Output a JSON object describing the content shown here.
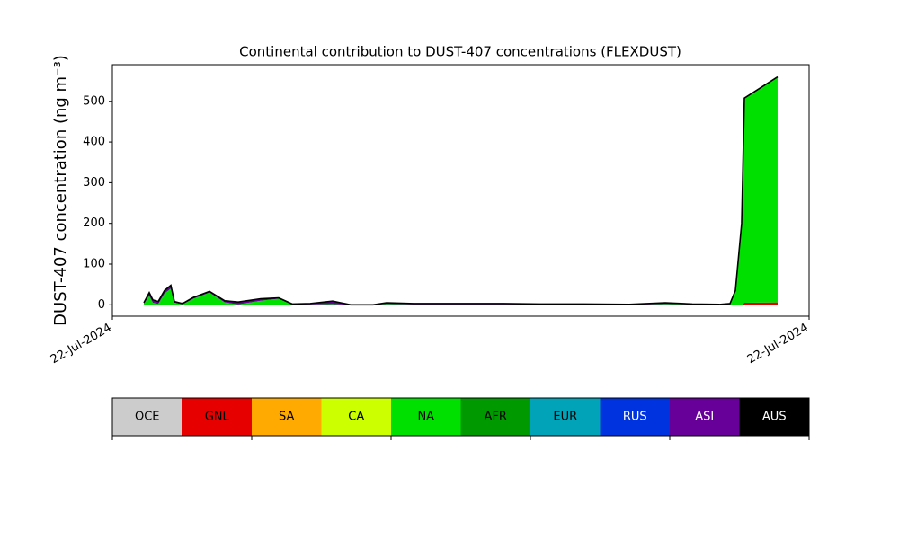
{
  "chart_data": {
    "type": "stacked_area",
    "title": "Continental contribution to DUST-407 concentrations (FLEXDUST)",
    "y_label": "DUST-407 concentration (ng m⁻³)",
    "x": [
      4.52,
      5.29,
      5.81,
      6.58,
      7.48,
      8.39,
      8.9,
      10.06,
      11.61,
      13.94,
      16.13,
      18.06,
      21.29,
      23.87,
      25.81,
      28.39,
      31.61,
      34.19,
      37.42,
      39.35,
      43.23,
      50.97,
      56.13,
      61.29,
      67.74,
      74.19,
      79.35,
      83.23,
      87.1,
      88.65,
      89.42,
      90.32,
      90.71,
      95.48
    ],
    "xlim": [
      0,
      100
    ],
    "xticks": [
      {
        "value": 0,
        "label": "22-Jul-2024"
      },
      {
        "value": 100,
        "label": "22-Jul-2024"
      }
    ],
    "ylim": [
      -28,
      590
    ],
    "yticks": [
      0,
      100,
      200,
      300,
      400,
      500
    ],
    "series": [
      {
        "name": "OCE",
        "color": "#cccccc",
        "values": [
          0,
          0,
          0,
          0,
          0,
          0,
          0,
          0,
          0,
          0,
          0,
          0,
          0,
          0,
          0,
          0,
          0,
          0,
          0,
          0,
          0,
          0,
          0,
          0,
          0,
          0,
          0,
          0,
          0,
          0,
          0,
          0,
          0,
          0
        ]
      },
      {
        "name": "GNL",
        "color": "#e60000",
        "values": [
          0,
          0,
          0,
          0,
          0,
          0,
          0,
          0,
          0,
          0,
          0,
          0,
          0,
          0,
          0,
          0,
          0,
          0,
          0,
          0,
          0,
          0,
          0,
          0,
          0,
          0,
          0,
          0,
          0,
          0,
          0,
          0,
          5,
          6
        ]
      },
      {
        "name": "SA",
        "color": "#ffaa00",
        "values": [
          0,
          0,
          0,
          0,
          0,
          0,
          0,
          0,
          0,
          0,
          0,
          0,
          0,
          0,
          0,
          0,
          0,
          0,
          0,
          0,
          0,
          0,
          0,
          0,
          0,
          0,
          0,
          0,
          0,
          0,
          0,
          0,
          0,
          0
        ]
      },
      {
        "name": "CA",
        "color": "#ccff00",
        "values": [
          0,
          0,
          0,
          0,
          0,
          0,
          0,
          0,
          0,
          0,
          0,
          0,
          0,
          0,
          0,
          0,
          0,
          0,
          0,
          0,
          0,
          0,
          0,
          0,
          0,
          0,
          0,
          0,
          0,
          0,
          0,
          0,
          0,
          0
        ]
      },
      {
        "name": "NA",
        "color": "#00e000",
        "values": [
          3,
          22,
          5,
          2,
          28,
          40,
          5,
          1,
          15,
          30,
          6,
          1,
          10,
          15,
          1,
          1,
          2,
          0,
          0,
          2,
          1,
          1,
          1,
          1,
          1,
          0,
          2,
          1,
          0,
          1,
          33,
          200,
          503,
          554
        ]
      },
      {
        "name": "AFR",
        "color": "#009900",
        "values": [
          0,
          0,
          0,
          0,
          0,
          0,
          0,
          0,
          0,
          0,
          0,
          0,
          0,
          0,
          0,
          0,
          0,
          0,
          0,
          0,
          0,
          0,
          0,
          0,
          0,
          0,
          0,
          0,
          0,
          0,
          0,
          0,
          0,
          0
        ]
      },
      {
        "name": "EUR",
        "color": "#00a3b8",
        "values": [
          0,
          0,
          0,
          0,
          0,
          0,
          0,
          0,
          0,
          0,
          0,
          0,
          0,
          0,
          0,
          0,
          0,
          0,
          0,
          0,
          0,
          0,
          0,
          0,
          0,
          0,
          0,
          0,
          0,
          0,
          0,
          0,
          0,
          0
        ]
      },
      {
        "name": "RUS",
        "color": "#0033e0",
        "values": [
          0,
          0,
          0,
          0,
          0,
          0,
          0,
          0,
          0,
          0,
          0,
          0,
          0,
          0,
          0,
          0,
          0,
          0,
          0,
          0,
          0,
          0,
          0,
          0,
          0,
          0,
          0,
          0,
          0,
          0,
          0,
          0,
          0,
          0
        ]
      },
      {
        "name": "ASI",
        "color": "#660099",
        "values": [
          2,
          8,
          7,
          6,
          7,
          8,
          3,
          2,
          3,
          3,
          4,
          6,
          5,
          2,
          1,
          2,
          7,
          0,
          0,
          3,
          2,
          2,
          2,
          1,
          1,
          1,
          3,
          1,
          1,
          2,
          2,
          0,
          0,
          0
        ]
      },
      {
        "name": "AUS",
        "color": "#000000",
        "values": [
          0,
          0,
          0,
          0,
          0,
          0,
          0,
          0,
          0,
          0,
          0,
          0,
          0,
          0,
          0,
          0,
          0,
          0,
          0,
          0,
          0,
          0,
          0,
          0,
          0,
          0,
          0,
          0,
          0,
          0,
          0,
          0,
          0,
          0
        ]
      }
    ]
  }
}
